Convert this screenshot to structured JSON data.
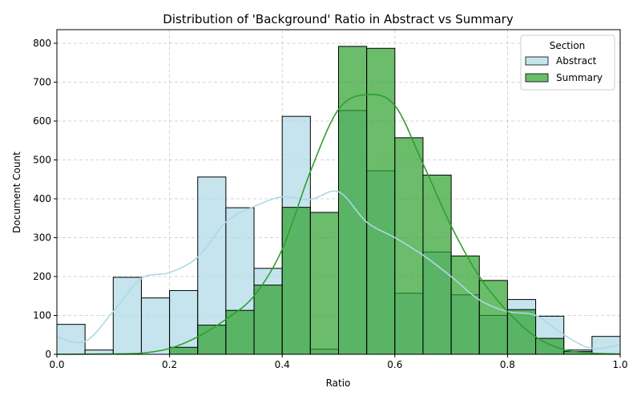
{
  "chart_data": {
    "type": "histogram",
    "title": "Distribution of 'Background' Ratio in Abstract vs Summary",
    "xlabel": "Ratio",
    "ylabel": "Document Count",
    "xlim": [
      0,
      1
    ],
    "ylim": [
      0,
      835
    ],
    "xticks": [
      0.0,
      0.2,
      0.4,
      0.6,
      0.8,
      1.0
    ],
    "xtick_labels": [
      "0.0",
      "0.2",
      "0.4",
      "0.6",
      "0.8",
      "1.0"
    ],
    "yticks": [
      0,
      100,
      200,
      300,
      400,
      500,
      600,
      700,
      800
    ],
    "ytick_labels": [
      "0",
      "100",
      "200",
      "300",
      "400",
      "500",
      "600",
      "700",
      "800"
    ],
    "grid": true,
    "bin_edges": [
      0.0,
      0.05,
      0.1,
      0.15,
      0.2,
      0.25,
      0.3,
      0.35,
      0.4,
      0.45,
      0.5,
      0.55,
      0.6,
      0.65,
      0.7,
      0.75,
      0.8,
      0.85,
      0.9,
      0.95,
      1.0
    ],
    "legend": {
      "title": "Section",
      "position": "top-right"
    },
    "series": [
      {
        "name": "Abstract",
        "color": "#add8e6",
        "values": [
          77,
          11,
          198,
          145,
          164,
          456,
          377,
          221,
          612,
          13,
          627,
          472,
          157,
          263,
          153,
          100,
          141,
          98,
          11,
          46
        ],
        "kde": [
          [
            0.0,
            45
          ],
          [
            0.05,
            33
          ],
          [
            0.1,
            110
          ],
          [
            0.15,
            195
          ],
          [
            0.2,
            210
          ],
          [
            0.25,
            250
          ],
          [
            0.3,
            340
          ],
          [
            0.35,
            380
          ],
          [
            0.4,
            405
          ],
          [
            0.45,
            398
          ],
          [
            0.5,
            418
          ],
          [
            0.55,
            340
          ],
          [
            0.6,
            300
          ],
          [
            0.65,
            255
          ],
          [
            0.7,
            200
          ],
          [
            0.75,
            140
          ],
          [
            0.8,
            110
          ],
          [
            0.85,
            100
          ],
          [
            0.9,
            50
          ],
          [
            0.95,
            15
          ],
          [
            1.0,
            25
          ]
        ]
      },
      {
        "name": "Summary",
        "color": "#2ca02c",
        "values": [
          0,
          0,
          0,
          0,
          18,
          75,
          113,
          178,
          378,
          365,
          792,
          787,
          557,
          461,
          253,
          190,
          115,
          41,
          7,
          0
        ],
        "kde": [
          [
            0.0,
            0
          ],
          [
            0.1,
            1
          ],
          [
            0.15,
            3
          ],
          [
            0.2,
            15
          ],
          [
            0.25,
            45
          ],
          [
            0.3,
            90
          ],
          [
            0.35,
            150
          ],
          [
            0.4,
            270
          ],
          [
            0.45,
            470
          ],
          [
            0.5,
            630
          ],
          [
            0.55,
            668
          ],
          [
            0.6,
            640
          ],
          [
            0.65,
            490
          ],
          [
            0.7,
            330
          ],
          [
            0.75,
            200
          ],
          [
            0.8,
            110
          ],
          [
            0.85,
            45
          ],
          [
            0.9,
            12
          ],
          [
            0.95,
            3
          ],
          [
            1.0,
            1
          ]
        ]
      }
    ]
  }
}
